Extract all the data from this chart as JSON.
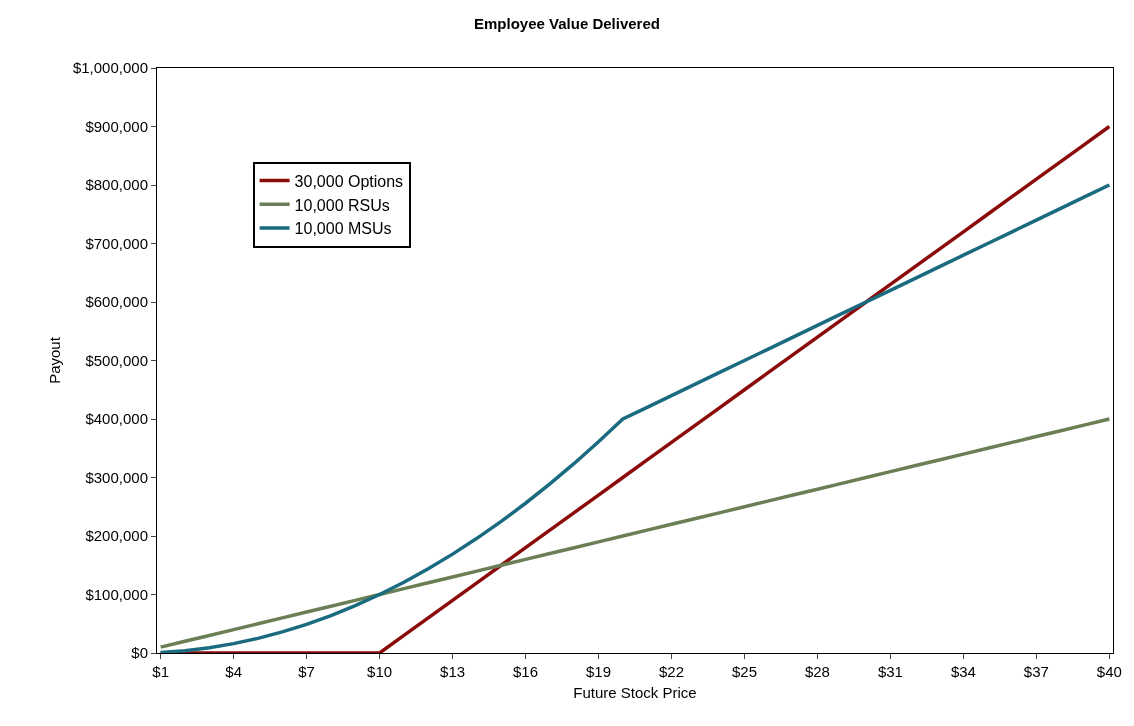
{
  "chart_data": {
    "type": "line",
    "title": "Employee Value Delivered",
    "xlabel": "Future Stock Price",
    "ylabel": "Payout",
    "categories": [
      "$1",
      null,
      null,
      "$4",
      null,
      null,
      "$7",
      null,
      null,
      "$10",
      null,
      null,
      "$13",
      null,
      null,
      "$16",
      null,
      null,
      "$19",
      null,
      null,
      "$22",
      null,
      null,
      "$25",
      null,
      null,
      "$28",
      null,
      null,
      "$31",
      null,
      null,
      "$34",
      null,
      null,
      "$37",
      null,
      null,
      "$40"
    ],
    "series": [
      {
        "name": "30,000 Options",
        "color": "#8b0a0a",
        "values": [
          0,
          0,
          0,
          0,
          0,
          0,
          0,
          0,
          0,
          0,
          30000,
          60000,
          90000,
          120000,
          150000,
          180000,
          210000,
          240000,
          270000,
          300000,
          330000,
          360000,
          390000,
          420000,
          450000,
          480000,
          510000,
          540000,
          570000,
          600000,
          630000,
          660000,
          690000,
          720000,
          750000,
          780000,
          810000,
          840000,
          870000,
          900000
        ]
      },
      {
        "name": "10,000 RSUs",
        "color": "#6b7f57",
        "values": [
          10000,
          20000,
          30000,
          40000,
          50000,
          60000,
          70000,
          80000,
          90000,
          100000,
          110000,
          120000,
          130000,
          140000,
          150000,
          160000,
          170000,
          180000,
          190000,
          200000,
          210000,
          220000,
          230000,
          240000,
          250000,
          260000,
          270000,
          280000,
          290000,
          300000,
          310000,
          320000,
          330000,
          340000,
          350000,
          360000,
          370000,
          380000,
          390000,
          400000
        ]
      },
      {
        "name": "10,000 MSUs",
        "color": "#1a6a80",
        "values": [
          1000,
          4000,
          9000,
          16000,
          25000,
          36000,
          49000,
          64000,
          81000,
          100000,
          121000,
          144000,
          169000,
          196000,
          225000,
          256000,
          289000,
          324000,
          361000,
          400000,
          420000,
          440000,
          460000,
          480000,
          500000,
          520000,
          540000,
          560000,
          580000,
          600000,
          620000,
          640000,
          660000,
          680000,
          700000,
          720000,
          740000,
          760000,
          780000,
          800000
        ]
      }
    ],
    "ylim": [
      0,
      1000000
    ],
    "yticks": [
      {
        "value": 0,
        "label": "$0"
      },
      {
        "value": 100000,
        "label": "$100,000"
      },
      {
        "value": 200000,
        "label": "$200,000"
      },
      {
        "value": 300000,
        "label": "$300,000"
      },
      {
        "value": 400000,
        "label": "$400,000"
      },
      {
        "value": 500000,
        "label": "$500,000"
      },
      {
        "value": 600000,
        "label": "$600,000"
      },
      {
        "value": 700000,
        "label": "$700,000"
      },
      {
        "value": 800000,
        "label": "$800,000"
      },
      {
        "value": 900000,
        "label": "$900,000"
      },
      {
        "value": 1000000,
        "label": "$1,000,000"
      }
    ],
    "legend": "top left",
    "marker": "none",
    "line_style": "solid",
    "grid": false
  }
}
